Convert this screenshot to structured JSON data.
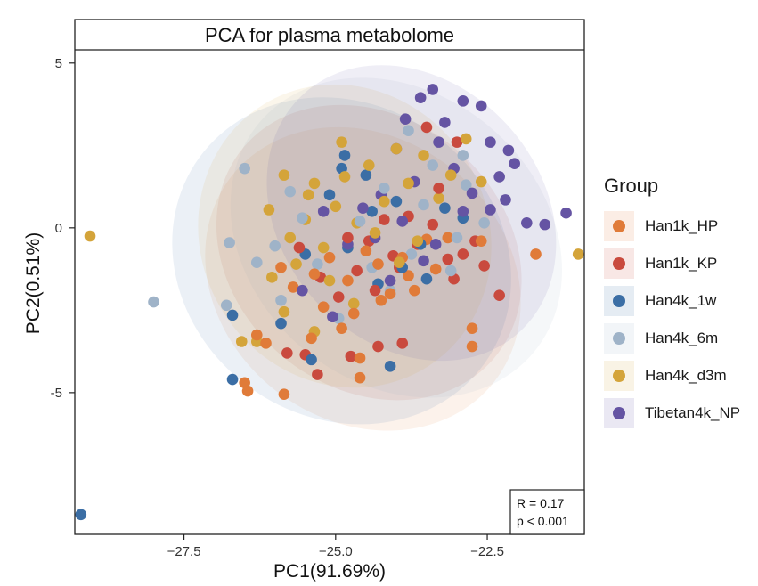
{
  "chart_data": {
    "type": "scatter",
    "title": "PCA for plasma metabolome",
    "xlabel": "PC1(91.69%)",
    "ylabel": "PC2(0.51%)",
    "xlim": [
      -29.3,
      -20.9
    ],
    "ylim": [
      -9.3,
      5.4
    ],
    "x_ticks": [
      -27.5,
      -25.0,
      -22.5
    ],
    "x_tick_labels": [
      "−27.5",
      "−25.0",
      "−22.5"
    ],
    "y_ticks": [
      5,
      0,
      -5
    ],
    "y_tick_labels": [
      "5",
      "0",
      "-5"
    ],
    "grid": false,
    "legend_title": "Group",
    "legend_position": "right",
    "annotation": {
      "lines": [
        "R = 0.17",
        "p < 0.001"
      ],
      "position": "bottom-right"
    },
    "series": [
      {
        "name": "Han1k_HP",
        "color": "#e07b39",
        "ellipse": {
          "cx": -24.55,
          "cy": -1.55,
          "rx": 2.75,
          "ry": 4.3,
          "angle": 38
        },
        "points": [
          [
            -26.5,
            -4.7
          ],
          [
            -26.45,
            -4.95
          ],
          [
            -25.85,
            -5.05
          ],
          [
            -24.6,
            -4.55
          ],
          [
            -22.75,
            -3.6
          ],
          [
            -22.75,
            -3.05
          ],
          [
            -21.7,
            -0.8
          ],
          [
            -26.3,
            -3.25
          ],
          [
            -26.15,
            -3.5
          ],
          [
            -25.4,
            -3.35
          ],
          [
            -25.2,
            -2.4
          ],
          [
            -24.9,
            -3.05
          ],
          [
            -24.6,
            -3.95
          ],
          [
            -24.25,
            -2.2
          ],
          [
            -23.8,
            -1.45
          ],
          [
            -23.5,
            -0.35
          ],
          [
            -23.15,
            -0.3
          ],
          [
            -22.6,
            -0.4
          ],
          [
            -25.7,
            -1.8
          ],
          [
            -25.35,
            -1.4
          ],
          [
            -25.1,
            -0.9
          ],
          [
            -24.8,
            -1.6
          ],
          [
            -24.5,
            -0.7
          ],
          [
            -24.3,
            -1.1
          ],
          [
            -24.1,
            -2.0
          ],
          [
            -23.9,
            -0.9
          ],
          [
            -23.7,
            -1.9
          ],
          [
            -25.9,
            -1.2
          ],
          [
            -24.7,
            -2.6
          ],
          [
            -23.35,
            -1.25
          ]
        ]
      },
      {
        "name": "Han1k_KP",
        "color": "#c94a3e",
        "ellipse": {
          "cx": -24.45,
          "cy": -0.75,
          "rx": 2.7,
          "ry": 4.1,
          "angle": 40
        },
        "points": [
          [
            -25.8,
            -3.8
          ],
          [
            -25.5,
            -3.85
          ],
          [
            -25.3,
            -4.45
          ],
          [
            -24.75,
            -3.9
          ],
          [
            -24.3,
            -3.6
          ],
          [
            -23.9,
            -3.5
          ],
          [
            -22.3,
            -2.05
          ],
          [
            -23.05,
            -1.55
          ],
          [
            -22.7,
            -0.4
          ],
          [
            -22.55,
            -1.15
          ],
          [
            -24.95,
            -2.1
          ],
          [
            -24.65,
            -1.3
          ],
          [
            -24.45,
            -0.4
          ],
          [
            -24.2,
            0.25
          ],
          [
            -23.95,
            -1.2
          ],
          [
            -23.65,
            -0.5
          ],
          [
            -23.4,
            0.1
          ],
          [
            -23.15,
            -0.95
          ],
          [
            -25.25,
            -1.5
          ],
          [
            -25.6,
            -0.6
          ],
          [
            -24.05,
            -0.85
          ],
          [
            -23.8,
            0.35
          ],
          [
            -23.3,
            1.2
          ],
          [
            -23.0,
            2.6
          ],
          [
            -23.5,
            3.05
          ],
          [
            -22.9,
            -0.8
          ],
          [
            -24.8,
            -0.3
          ],
          [
            -24.35,
            -1.9
          ]
        ]
      },
      {
        "name": "Han4k_1w",
        "color": "#3b6ea5",
        "ellipse": {
          "cx": -24.9,
          "cy": -1.0,
          "rx": 2.9,
          "ry": 4.75,
          "angle": 36
        },
        "points": [
          [
            -29.2,
            -8.7
          ],
          [
            -26.7,
            -4.6
          ],
          [
            -26.7,
            -2.65
          ],
          [
            -25.4,
            -4.0
          ],
          [
            -24.1,
            -4.2
          ],
          [
            -25.9,
            -2.9
          ],
          [
            -24.3,
            -1.7
          ],
          [
            -23.5,
            -1.55
          ],
          [
            -25.5,
            -0.8
          ],
          [
            -24.8,
            -0.6
          ],
          [
            -24.4,
            0.5
          ],
          [
            -25.1,
            1.0
          ],
          [
            -24.85,
            2.2
          ],
          [
            -24.9,
            1.8
          ],
          [
            -24.5,
            1.6
          ],
          [
            -24.0,
            0.8
          ],
          [
            -23.6,
            -0.5
          ],
          [
            -23.2,
            0.6
          ],
          [
            -22.9,
            0.3
          ],
          [
            -23.9,
            -1.2
          ]
        ]
      },
      {
        "name": "Han4k_6m",
        "color": "#9fb3c8",
        "ellipse": {
          "cx": -24.0,
          "cy": -0.3,
          "rx": 2.95,
          "ry": 4.4,
          "angle": 40
        },
        "points": [
          [
            -28.0,
            -2.25
          ],
          [
            -26.8,
            -2.35
          ],
          [
            -26.75,
            -0.45
          ],
          [
            -26.5,
            1.8
          ],
          [
            -26.0,
            -0.55
          ],
          [
            -25.75,
            1.1
          ],
          [
            -26.3,
            -1.05
          ],
          [
            -25.9,
            -2.2
          ],
          [
            -25.3,
            -1.1
          ],
          [
            -24.95,
            -2.75
          ],
          [
            -24.4,
            -1.2
          ],
          [
            -23.8,
            2.95
          ],
          [
            -23.55,
            0.7
          ],
          [
            -23.1,
            -1.3
          ],
          [
            -22.85,
            1.3
          ],
          [
            -22.55,
            0.15
          ],
          [
            -24.2,
            1.2
          ],
          [
            -23.4,
            1.9
          ],
          [
            -24.6,
            0.2
          ],
          [
            -23.0,
            -0.3
          ],
          [
            -23.75,
            -0.8
          ],
          [
            -25.55,
            0.3
          ],
          [
            -24.1,
            -1.9
          ],
          [
            -22.9,
            2.2
          ]
        ]
      },
      {
        "name": "Han4k_d3m",
        "color": "#d4a43a",
        "ellipse": {
          "cx": -24.85,
          "cy": -0.25,
          "rx": 2.55,
          "ry": 4.35,
          "angle": 58
        },
        "points": [
          [
            -29.05,
            -0.25
          ],
          [
            -21.0,
            -0.8
          ],
          [
            -25.85,
            1.6
          ],
          [
            -26.55,
            -3.45
          ],
          [
            -26.3,
            -3.45
          ],
          [
            -25.85,
            -2.55
          ],
          [
            -25.35,
            -3.15
          ],
          [
            -26.05,
            -1.5
          ],
          [
            -25.75,
            -0.3
          ],
          [
            -25.65,
            -1.1
          ],
          [
            -25.5,
            0.25
          ],
          [
            -25.35,
            1.35
          ],
          [
            -25.2,
            -0.6
          ],
          [
            -25.0,
            0.65
          ],
          [
            -24.85,
            1.55
          ],
          [
            -24.65,
            0.15
          ],
          [
            -24.45,
            1.9
          ],
          [
            -24.2,
            0.8
          ],
          [
            -24.0,
            2.4
          ],
          [
            -23.8,
            1.35
          ],
          [
            -23.55,
            2.2
          ],
          [
            -23.3,
            0.9
          ],
          [
            -23.1,
            1.6
          ],
          [
            -22.85,
            2.7
          ],
          [
            -25.1,
            -1.6
          ],
          [
            -24.7,
            -2.3
          ],
          [
            -23.95,
            -1.05
          ],
          [
            -23.65,
            -0.4
          ],
          [
            -24.35,
            -0.15
          ],
          [
            -25.45,
            1.0
          ],
          [
            -26.1,
            0.55
          ],
          [
            -24.9,
            2.6
          ],
          [
            -22.6,
            1.4
          ]
        ]
      },
      {
        "name": "Tibetan4k_NP",
        "color": "#6554a3",
        "ellipse": {
          "cx": -23.75,
          "cy": 0.45,
          "rx": 2.65,
          "ry": 3.95,
          "angle": 48
        },
        "points": [
          [
            -23.6,
            3.95
          ],
          [
            -23.4,
            4.2
          ],
          [
            -22.9,
            3.85
          ],
          [
            -22.6,
            3.7
          ],
          [
            -22.45,
            2.6
          ],
          [
            -22.15,
            2.35
          ],
          [
            -21.85,
            0.15
          ],
          [
            -21.55,
            0.1
          ],
          [
            -21.2,
            0.45
          ],
          [
            -22.3,
            1.55
          ],
          [
            -23.85,
            3.3
          ],
          [
            -24.0,
            2.4
          ],
          [
            -23.7,
            1.4
          ],
          [
            -24.25,
            1.0
          ],
          [
            -24.55,
            0.6
          ],
          [
            -23.3,
            2.6
          ],
          [
            -23.05,
            1.8
          ],
          [
            -22.75,
            1.05
          ],
          [
            -22.45,
            0.55
          ],
          [
            -22.2,
            0.85
          ],
          [
            -24.8,
            -0.5
          ],
          [
            -25.2,
            0.5
          ],
          [
            -25.55,
            -1.9
          ],
          [
            -25.05,
            -2.7
          ],
          [
            -24.1,
            -1.6
          ],
          [
            -23.55,
            -1.0
          ],
          [
            -23.9,
            0.2
          ],
          [
            -24.35,
            -0.3
          ],
          [
            -22.9,
            0.5
          ],
          [
            -23.35,
            -0.5
          ],
          [
            -22.05,
            1.95
          ],
          [
            -23.2,
            3.2
          ]
        ]
      }
    ]
  }
}
